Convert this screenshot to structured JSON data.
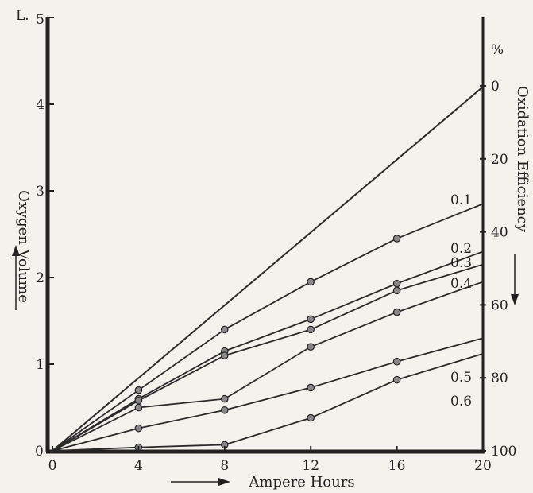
{
  "chart_data": {
    "type": "line",
    "title": "",
    "xlabel": "Ampere Hours",
    "ylabel": "Oxygen Volume",
    "ylabel_right": "Oxidation Efficiency",
    "y_unit_label": "L.",
    "y2_unit_label": "%",
    "xlim": [
      0,
      20
    ],
    "ylim": [
      0,
      5
    ],
    "y2lim": [
      100,
      0
    ],
    "x_ticks": [
      "0",
      "4",
      "8",
      "12",
      "16",
      "20"
    ],
    "y_ticks": [
      "0",
      "1",
      "2",
      "3",
      "4",
      "5"
    ],
    "y2_ticks": [
      "0",
      "20",
      "40",
      "60",
      "80",
      "100"
    ],
    "grid": false,
    "legend": "none",
    "series": [
      {
        "name": "",
        "x": [
          0,
          20
        ],
        "y": [
          0,
          4.2
        ]
      },
      {
        "name": "0.1",
        "x": [
          0,
          4,
          8,
          12,
          16,
          20
        ],
        "y": [
          0,
          0.7,
          1.4,
          1.95,
          2.45,
          2.85
        ]
      },
      {
        "name": "0.2",
        "x": [
          0,
          4,
          8,
          12,
          16,
          20
        ],
        "y": [
          0,
          0.6,
          1.15,
          1.52,
          1.93,
          2.3
        ]
      },
      {
        "name": "0.3",
        "x": [
          0,
          4,
          8,
          12,
          16,
          20
        ],
        "y": [
          0,
          0.58,
          1.1,
          1.4,
          1.85,
          2.15
        ]
      },
      {
        "name": "0.4",
        "x": [
          0,
          4,
          8,
          12,
          16,
          20
        ],
        "y": [
          0,
          0.5,
          0.6,
          1.2,
          1.6,
          1.95
        ]
      },
      {
        "name": "0.5",
        "x": [
          0,
          4,
          8,
          12,
          16,
          20
        ],
        "y": [
          0,
          0.26,
          0.47,
          0.73,
          1.03,
          1.3
        ]
      },
      {
        "name": "0.6",
        "x": [
          0,
          4,
          8,
          12,
          16,
          20
        ],
        "y": [
          0,
          0.04,
          0.07,
          0.38,
          0.82,
          1.12
        ]
      }
    ]
  }
}
